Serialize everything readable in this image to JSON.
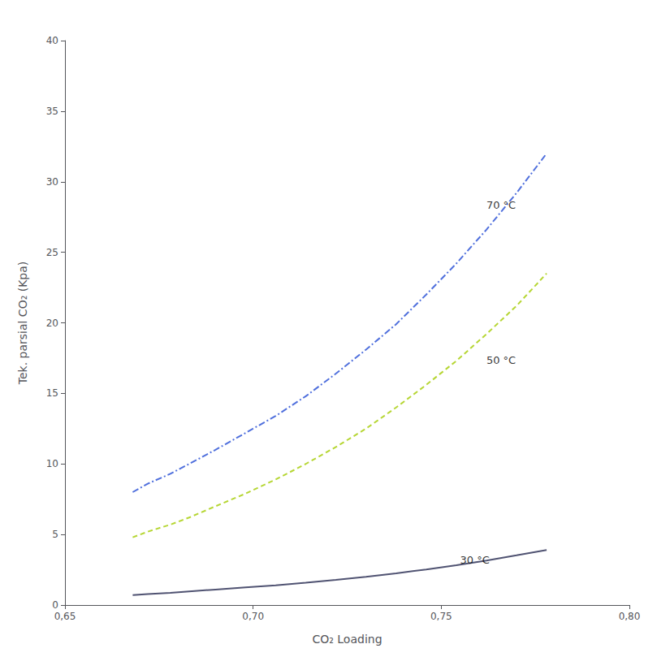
{
  "chart_data": {
    "type": "line",
    "xlabel": "CO₂ Loading",
    "ylabel": "Tek. parsial CO₂ (Kpa)",
    "xlim": [
      0.65,
      0.8
    ],
    "ylim": [
      0,
      40
    ],
    "xticks": [
      {
        "value": 0.65,
        "label": "0,65"
      },
      {
        "value": 0.7,
        "label": "0,70"
      },
      {
        "value": 0.75,
        "label": "0,75"
      },
      {
        "value": 0.8,
        "label": "0,80"
      }
    ],
    "yticks": [
      0,
      5,
      10,
      15,
      20,
      25,
      30,
      35,
      40
    ],
    "grid": false,
    "x": [
      0.668,
      0.672,
      0.678,
      0.683,
      0.69,
      0.698,
      0.706,
      0.714,
      0.722,
      0.73,
      0.738,
      0.746,
      0.754,
      0.762,
      0.77,
      0.778
    ],
    "series": [
      {
        "line_style": "dashdot",
        "values": [
          8.0,
          8.6,
          9.3,
          10.0,
          11.0,
          12.2,
          13.4,
          14.8,
          16.4,
          18.1,
          19.9,
          22.0,
          24.2,
          26.6,
          29.2,
          32.0
        ]
      },
      {
        "line_style": "dashed",
        "values": [
          4.8,
          5.2,
          5.7,
          6.2,
          7.0,
          7.9,
          8.9,
          10.0,
          11.2,
          12.5,
          14.0,
          15.6,
          17.3,
          19.2,
          21.2,
          23.5
        ]
      },
      {
        "line_style": "solid",
        "values": [
          0.7,
          0.78,
          0.87,
          0.97,
          1.1,
          1.25,
          1.4,
          1.58,
          1.78,
          2.0,
          2.25,
          2.52,
          2.82,
          3.15,
          3.52,
          3.9
        ]
      }
    ],
    "annotations": [
      {
        "text": "70 °C",
        "x": 0.762,
        "y": 28.0
      },
      {
        "text": "50 °C",
        "x": 0.762,
        "y": 17.0
      },
      {
        "text": "30 °C",
        "x": 0.755,
        "y": 2.8
      }
    ]
  }
}
